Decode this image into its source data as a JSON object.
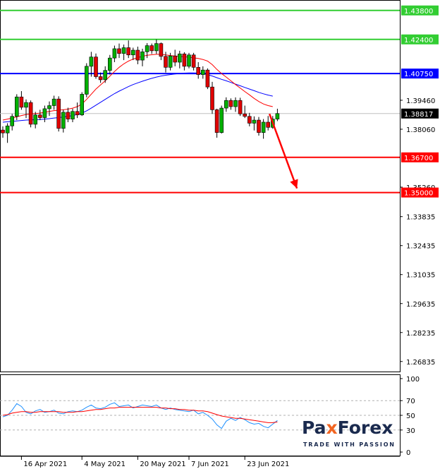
{
  "brand": {
    "part1": "Pa",
    "mark": "x",
    "part2": "Forex",
    "slogan": "TRADE WITH PASSION",
    "color_main": "#1a2a4e",
    "color_accent": "#f26522"
  },
  "chart_data": [
    {
      "type": "candlestick",
      "title": "",
      "ylim": [
        1.2635,
        1.4427
      ],
      "price_ticks": [
        "1.43800",
        "1.42400",
        "1.40750",
        "1.39460",
        "1.38817",
        "1.38060",
        "1.36700",
        "1.35260",
        "1.35000",
        "1.33835",
        "1.32435",
        "1.31035",
        "1.29635",
        "1.28235",
        "1.26835"
      ],
      "x_labels": [
        {
          "label": "16 Apr 2021",
          "index": 4
        },
        {
          "label": "4 May 2021",
          "index": 17
        },
        {
          "label": "20 May 2021",
          "index": 29
        },
        {
          "label": "7 Jun 2021",
          "index": 40
        },
        {
          "label": "23 Jun 2021",
          "index": 52
        }
      ],
      "current_price": 1.38817,
      "levels": [
        {
          "value": 1.438,
          "label": "1.43800",
          "color": "#32cd32"
        },
        {
          "value": 1.424,
          "label": "1.42400",
          "color": "#32cd32"
        },
        {
          "value": 1.4075,
          "label": "1.40750",
          "color": "#0000ff"
        },
        {
          "value": 1.367,
          "label": "1.36700",
          "color": "#ff0000"
        },
        {
          "value": 1.35,
          "label": "1.35000",
          "color": "#ff0000"
        }
      ],
      "forecast_arrow": {
        "from_index": 57.3,
        "from_price": 1.388,
        "to_index": 63.2,
        "to_price": 1.352,
        "color": "#ff0000"
      },
      "colors": {
        "bull": "#00b000",
        "bear": "#e00000",
        "ma_fast": "#ff0000",
        "ma_slow": "#0000ff"
      },
      "candles": [
        [
          1.3802,
          1.382,
          1.3765,
          1.3788
        ],
        [
          1.3788,
          1.3835,
          1.374,
          1.3822
        ],
        [
          1.3822,
          1.388,
          1.38,
          1.3868
        ],
        [
          1.3868,
          1.3975,
          1.385,
          1.3962
        ],
        [
          1.3962,
          1.399,
          1.39,
          1.3912
        ],
        [
          1.3912,
          1.395,
          1.386,
          1.3935
        ],
        [
          1.3935,
          1.3945,
          1.3815,
          1.383
        ],
        [
          1.383,
          1.389,
          1.381,
          1.3875
        ],
        [
          1.3875,
          1.39,
          1.385,
          1.3862
        ],
        [
          1.3862,
          1.392,
          1.384,
          1.3905
        ],
        [
          1.3905,
          1.394,
          1.387,
          1.392
        ],
        [
          1.392,
          1.3968,
          1.39,
          1.3952
        ],
        [
          1.3952,
          1.3965,
          1.3795,
          1.381
        ],
        [
          1.381,
          1.39,
          1.379,
          1.3888
        ],
        [
          1.3888,
          1.391,
          1.384,
          1.3855
        ],
        [
          1.3855,
          1.3905,
          1.384,
          1.3892
        ],
        [
          1.3892,
          1.3935,
          1.386,
          1.3875
        ],
        [
          1.3875,
          1.3985,
          1.387,
          1.3975
        ],
        [
          1.3975,
          1.4125,
          1.396,
          1.411
        ],
        [
          1.411,
          1.418,
          1.406,
          1.4155
        ],
        [
          1.4155,
          1.4172,
          1.405,
          1.406
        ],
        [
          1.406,
          1.408,
          1.403,
          1.4045
        ],
        [
          1.4045,
          1.411,
          1.403,
          1.409
        ],
        [
          1.409,
          1.4165,
          1.407,
          1.415
        ],
        [
          1.415,
          1.421,
          1.413,
          1.4195
        ],
        [
          1.4195,
          1.422,
          1.415,
          1.4172
        ],
        [
          1.4172,
          1.4215,
          1.414,
          1.42
        ],
        [
          1.42,
          1.4235,
          1.415,
          1.4165
        ],
        [
          1.4165,
          1.42,
          1.414,
          1.4188
        ],
        [
          1.4188,
          1.4205,
          1.412,
          1.414
        ],
        [
          1.414,
          1.4195,
          1.411,
          1.418
        ],
        [
          1.418,
          1.4222,
          1.415,
          1.421
        ],
        [
          1.421,
          1.422,
          1.417,
          1.4185
        ],
        [
          1.4185,
          1.424,
          1.417,
          1.422
        ],
        [
          1.422,
          1.4225,
          1.414,
          1.4158
        ],
        [
          1.4158,
          1.418,
          1.408,
          1.4105
        ],
        [
          1.4105,
          1.4175,
          1.409,
          1.416
        ],
        [
          1.416,
          1.419,
          1.411,
          1.413
        ],
        [
          1.413,
          1.4185,
          1.41,
          1.417
        ],
        [
          1.417,
          1.4178,
          1.409,
          1.411
        ],
        [
          1.411,
          1.4175,
          1.41,
          1.4165
        ],
        [
          1.4165,
          1.4175,
          1.409,
          1.4105
        ],
        [
          1.4105,
          1.413,
          1.405,
          1.407
        ],
        [
          1.407,
          1.411,
          1.405,
          1.4092
        ],
        [
          1.4092,
          1.41,
          1.4,
          1.401
        ],
        [
          1.401,
          1.4035,
          1.388,
          1.39
        ],
        [
          1.39,
          1.3905,
          1.3765,
          1.379
        ],
        [
          1.379,
          1.392,
          1.3785,
          1.3908
        ],
        [
          1.3908,
          1.396,
          1.389,
          1.3945
        ],
        [
          1.3945,
          1.3955,
          1.39,
          1.3915
        ],
        [
          1.3915,
          1.396,
          1.389,
          1.3945
        ],
        [
          1.3945,
          1.3958,
          1.387,
          1.388
        ],
        [
          1.388,
          1.392,
          1.386,
          1.3868
        ],
        [
          1.3868,
          1.3885,
          1.382,
          1.3835
        ],
        [
          1.3835,
          1.3868,
          1.38,
          1.385
        ],
        [
          1.385,
          1.3865,
          1.3775,
          1.379
        ],
        [
          1.379,
          1.3855,
          1.376,
          1.384
        ],
        [
          1.384,
          1.387,
          1.38,
          1.3815
        ],
        [
          1.3815,
          1.387,
          1.3808,
          1.3855
        ],
        [
          1.3855,
          1.3905,
          1.3845,
          1.38817
        ]
      ],
      "ma_fast": [
        1.385,
        1.3855,
        1.386,
        1.3866,
        1.3872,
        1.3877,
        1.388,
        1.3882,
        1.3884,
        1.3888,
        1.3892,
        1.3896,
        1.3898,
        1.39,
        1.3903,
        1.3908,
        1.3915,
        1.3928,
        1.395,
        1.3975,
        1.4,
        1.402,
        1.404,
        1.4062,
        1.4085,
        1.4105,
        1.4122,
        1.4135,
        1.4145,
        1.4152,
        1.4158,
        1.4163,
        1.4166,
        1.4168,
        1.4168,
        1.4165,
        1.4162,
        1.416,
        1.4158,
        1.4156,
        1.4154,
        1.4151,
        1.4148,
        1.4143,
        1.4135,
        1.4118,
        1.4095,
        1.4075,
        1.4058,
        1.404,
        1.4022,
        1.4005,
        1.3988,
        1.3972,
        1.3955,
        1.394,
        1.3928,
        1.392,
        1.3915
      ],
      "ma_slow": [
        1.384,
        1.3842,
        1.3844,
        1.3846,
        1.3848,
        1.385,
        1.3851,
        1.3852,
        1.3853,
        1.3855,
        1.3857,
        1.386,
        1.3862,
        1.3865,
        1.3868,
        1.3872,
        1.3877,
        1.3884,
        1.3895,
        1.3908,
        1.3922,
        1.3936,
        1.395,
        1.3964,
        1.3978,
        1.399,
        1.4001,
        1.4012,
        1.4022,
        1.403,
        1.4038,
        1.4045,
        1.4052,
        1.4058,
        1.4063,
        1.4067,
        1.407,
        1.4073,
        1.4075,
        1.4077,
        1.4078,
        1.4078,
        1.4077,
        1.4075,
        1.407,
        1.4063,
        1.4055,
        1.4047,
        1.404,
        1.4032,
        1.4024,
        1.4016,
        1.4008,
        1.4,
        1.3992,
        1.3984,
        1.3977,
        1.3971,
        1.3966
      ]
    },
    {
      "type": "line",
      "title": "",
      "ylim": [
        0,
        100
      ],
      "y_ticks": [
        "100",
        "70",
        "50",
        "30",
        "0"
      ],
      "levels": [
        70,
        50,
        30
      ],
      "series": [
        {
          "color": "#1e90ff",
          "values": [
            48,
            50,
            57,
            66,
            62,
            54,
            52,
            56,
            58,
            54,
            55,
            57,
            53,
            52,
            55,
            56,
            55,
            57,
            61,
            64,
            60,
            59,
            61,
            65,
            67,
            62,
            63,
            64,
            60,
            62,
            64,
            63,
            62,
            64,
            60,
            58,
            60,
            58,
            57,
            56,
            55,
            57,
            52,
            54,
            50,
            45,
            37,
            32,
            42,
            46,
            43,
            47,
            44,
            40,
            38,
            39,
            35,
            33,
            38,
            43
          ]
        },
        {
          "color": "#ff0000",
          "values": [
            50,
            51,
            53,
            54,
            55,
            55,
            54,
            54,
            55,
            55,
            55,
            55,
            55,
            54,
            54,
            54,
            55,
            55,
            56,
            57,
            58,
            58,
            59,
            60,
            60,
            61,
            61,
            61,
            61,
            61,
            61,
            61,
            61,
            61,
            60,
            60,
            59,
            59,
            58,
            58,
            57,
            57,
            56,
            56,
            55,
            53,
            51,
            49,
            48,
            47,
            46,
            46,
            45,
            44,
            43,
            42,
            41,
            40,
            40,
            41
          ]
        }
      ]
    }
  ]
}
